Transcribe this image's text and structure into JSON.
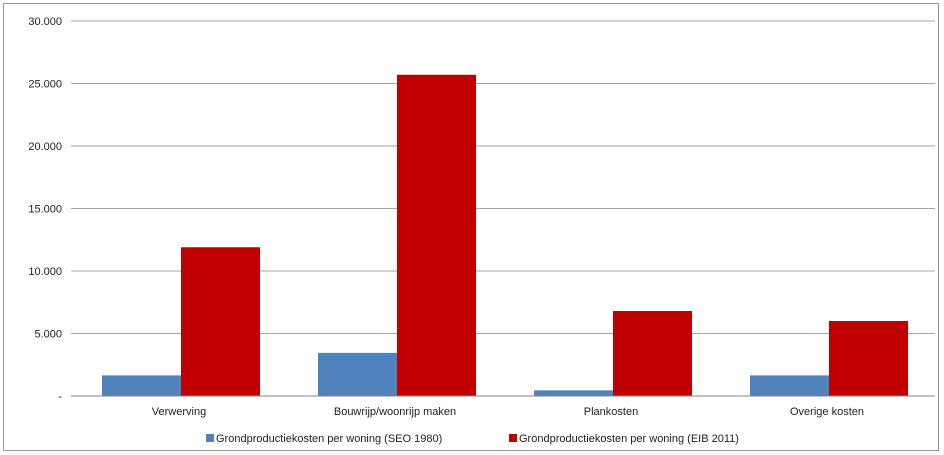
{
  "chart_data": {
    "type": "bar",
    "title": "",
    "xlabel": "",
    "ylabel": "",
    "ylim": [
      0,
      30000
    ],
    "yticks": [
      0,
      5000,
      10000,
      15000,
      20000,
      25000,
      30000
    ],
    "ytick_labels": [
      "-",
      "5.000",
      "10.000",
      "15.000",
      "20.000",
      "25.000",
      "30.000"
    ],
    "grid": true,
    "legend_position": "bottom",
    "categories": [
      "Verwerving",
      "Bouwrijp/woonrijp maken",
      "Plankosten",
      "Overige kosten"
    ],
    "series": [
      {
        "name": "Grondproductiekosten per woning (SEO 1980)",
        "color": "#4f81bd",
        "values": [
          1650,
          3450,
          450,
          1650
        ]
      },
      {
        "name": "Grondproductiekosten per woning (EIB 2011)",
        "color": "#c00000",
        "values": [
          11900,
          25700,
          6800,
          6000
        ]
      }
    ]
  }
}
